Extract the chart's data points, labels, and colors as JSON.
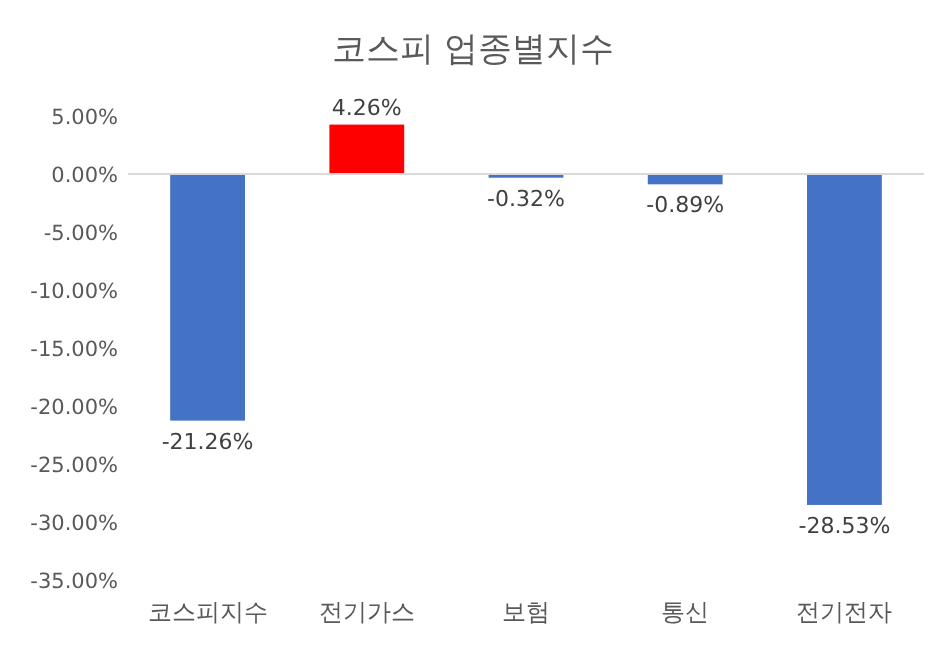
{
  "chart_data": {
    "type": "bar",
    "title": "코스피 업종별지수",
    "categories": [
      "코스피지수",
      "전기가스",
      "보험",
      "통신",
      "전기전자"
    ],
    "values": [
      -21.26,
      4.26,
      -0.32,
      -0.89,
      -28.53
    ],
    "colors": [
      "#4472c4",
      "#ff0000",
      "#4472c4",
      "#4472c4",
      "#4472c4"
    ],
    "value_labels": [
      "-21.26%",
      "4.26%",
      "-0.32%",
      "-0.89%",
      "-28.53%"
    ],
    "ylim": [
      -35,
      5
    ],
    "yticks": [
      {
        "value": 5,
        "label": "5.00%"
      },
      {
        "value": 0,
        "label": "0.00%"
      },
      {
        "value": -5,
        "label": "-5.00%"
      },
      {
        "value": -10,
        "label": "-10.00%"
      },
      {
        "value": -15,
        "label": "-15.00%"
      },
      {
        "value": -20,
        "label": "-20.00%"
      },
      {
        "value": -25,
        "label": "-25.00%"
      },
      {
        "value": -30,
        "label": "-30.00%"
      },
      {
        "value": -35,
        "label": "-35.00%"
      }
    ],
    "legend": false
  }
}
